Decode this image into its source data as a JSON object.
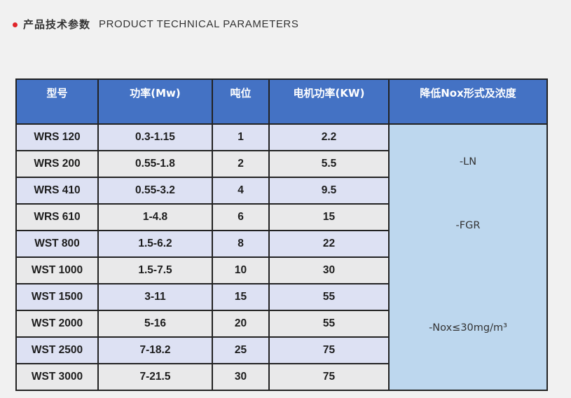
{
  "header": {
    "title_cn": "产品技术参数",
    "title_en": "PRODUCT TECHNICAL PARAMETERS"
  },
  "table": {
    "columns": [
      "型号",
      "功率(Mw)",
      "吨位",
      "电机功率(KW)",
      "降低Nox形式及浓度"
    ],
    "rows": [
      [
        "WRS 120",
        "0.3-1.15",
        "1",
        "2.2"
      ],
      [
        "WRS 200",
        "0.55-1.8",
        "2",
        "5.5"
      ],
      [
        "WRS 410",
        "0.55-3.2",
        "4",
        "9.5"
      ],
      [
        "WRS 610",
        "1-4.8",
        "6",
        "15"
      ],
      [
        "WST 800",
        "1.5-6.2",
        "8",
        "22"
      ],
      [
        "WST 1000",
        "1.5-7.5",
        "10",
        "30"
      ],
      [
        "WST 1500",
        "3-11",
        "15",
        "55"
      ],
      [
        "WST 2000",
        "5-16",
        "20",
        "55"
      ],
      [
        "WST 2500",
        "7-18.2",
        "25",
        "75"
      ],
      [
        "WST 3000",
        "7-21.5",
        "30",
        "75"
      ]
    ],
    "nox_methods": [
      "-LN",
      "-FGR",
      "-Nox≤30mg/m³"
    ]
  }
}
